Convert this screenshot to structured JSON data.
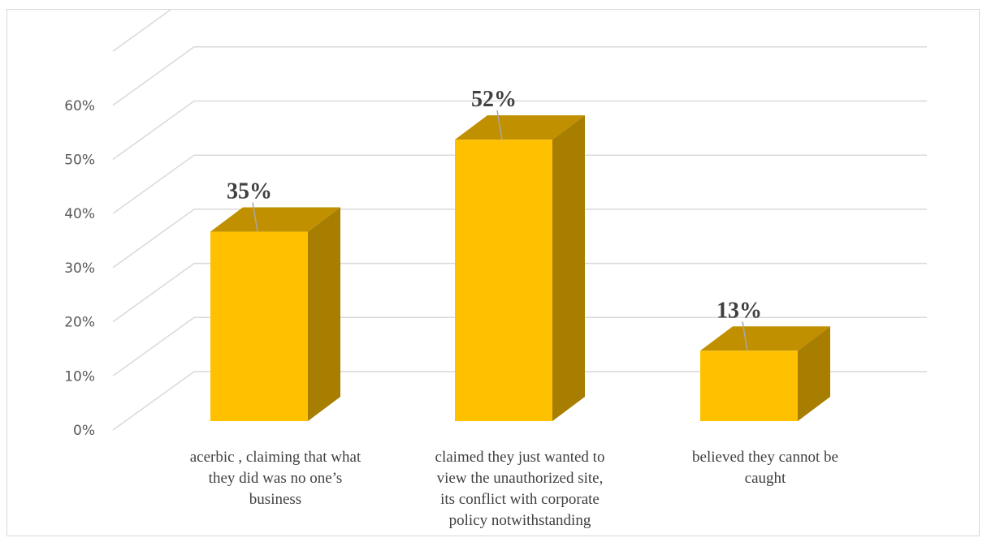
{
  "chart_data": {
    "type": "bar",
    "style": "3d-column",
    "categories": [
      [
        "acerbic ,  claiming that what",
        "they did was no one’s",
        "business"
      ],
      [
        "claimed they just wanted to",
        "view the unauthorized site,",
        "its conflict with corporate",
        "policy notwithstanding"
      ],
      [
        "believed they cannot be",
        "caught"
      ]
    ],
    "values": [
      35,
      52,
      13
    ],
    "data_labels": [
      "35%",
      "52%",
      "13%"
    ],
    "yticks": [
      "0%",
      "10%",
      "20%",
      "30%",
      "40%",
      "50%",
      "60%"
    ],
    "ylim": [
      0,
      60
    ],
    "grid": true,
    "legend": "none",
    "colors": {
      "front": "#FFC000",
      "top": "#C09000",
      "side": "#A87E00",
      "grid": "#d9d9d9"
    }
  }
}
